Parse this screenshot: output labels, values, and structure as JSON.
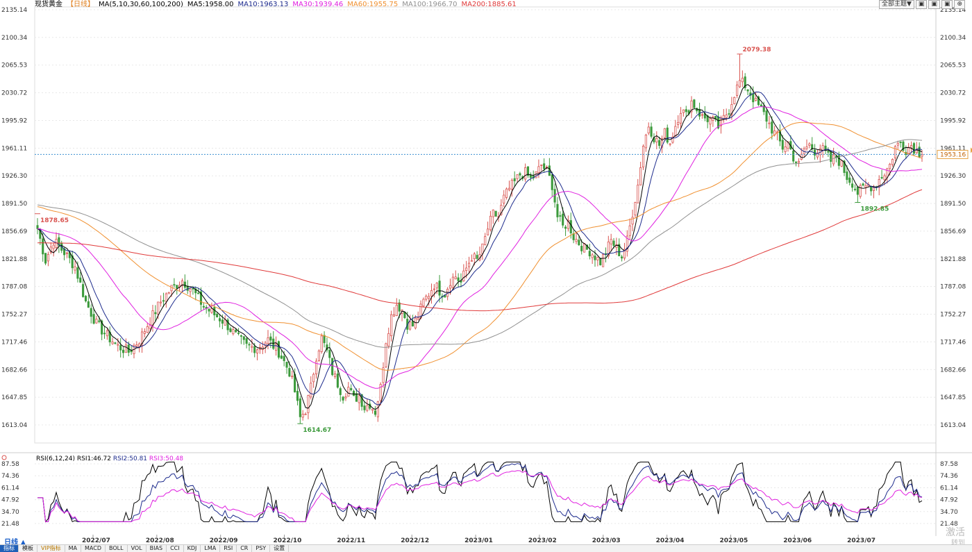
{
  "header": {
    "instrument": "现货黄金",
    "period": "【日线】",
    "ma_label": "MA(5,10,30,60,100,200)",
    "ma_values": [
      {
        "text": "MA5:1958.00",
        "color": "#000000"
      },
      {
        "text": "MA10:1963.13",
        "color": "#1c2a8c"
      },
      {
        "text": "MA30:1939.46",
        "color": "#e020e0"
      },
      {
        "text": "MA60:1955.75",
        "color": "#f09030"
      },
      {
        "text": "MA100:1966.70",
        "color": "#909090"
      },
      {
        "text": "MA200:1885.61",
        "color": "#e03a3a"
      }
    ]
  },
  "top_buttons": [
    "全部主题▼",
    "▣",
    "▣",
    "▣",
    "⊕"
  ],
  "price_axis_labels": [
    "2135.14",
    "2100.34",
    "2065.53",
    "2030.72",
    "1995.92",
    "1961.11",
    "1926.30",
    "1891.50",
    "1856.69",
    "1821.88",
    "1787.08",
    "1752.27",
    "1717.46",
    "1682.66",
    "1647.85",
    "1613.04"
  ],
  "current_price": "1953.16",
  "annotations": {
    "start": "1878.65",
    "high": "2079.38",
    "low": "1614.67",
    "recent_low": "1892.85"
  },
  "rsi_header": {
    "label": "RSI(6,12,24)",
    "values": [
      {
        "text": "RSI1:46.72",
        "color": "#000000"
      },
      {
        "text": "RSI2:50.81",
        "color": "#1c2a8c"
      },
      {
        "text": "RSI3:50.48",
        "color": "#e020e0"
      }
    ]
  },
  "rsi_axis_labels": [
    "87.58",
    "74.36",
    "61.14",
    "47.92",
    "34.70",
    "21.48"
  ],
  "month_labels": [
    "2022/07",
    "2022/08",
    "2022/09",
    "2022/10",
    "2022/11",
    "2022/12",
    "2023/01",
    "2023/02",
    "2023/03",
    "2023/04",
    "2023/05",
    "2023/06",
    "2023/07"
  ],
  "day_tab": "日线 ▲",
  "bottom_tabs": [
    "指标",
    "模板",
    "VIP指标",
    "MA",
    "MACD",
    "BOLL",
    "VOL",
    "BIAS",
    "CCI",
    "KDJ",
    "LMA",
    "RSI",
    "CR",
    "PSY",
    "设置"
  ],
  "watermark": [
    "激活",
    "转到"
  ],
  "colors": {
    "up": "#d9534f",
    "down": "#3c9a3c",
    "ma5": "#000000",
    "ma10": "#1c2a8c",
    "ma30": "#e020e0",
    "ma60": "#f09030",
    "ma100": "#909090",
    "ma200": "#e03a3a",
    "grid": "#e8e8e8",
    "price_line": "#3a8fd0"
  },
  "chart_data": {
    "type": "candlestick",
    "title": "现货黄金【日线】",
    "ylim": [
      1613.04,
      2135.14
    ],
    "y_ticks": [
      2135.14,
      2100.34,
      2065.53,
      2030.72,
      1995.92,
      1961.11,
      1926.3,
      1891.5,
      1856.69,
      1821.88,
      1787.08,
      1752.27,
      1717.46,
      1682.66,
      1647.85,
      1613.04
    ],
    "x_months": [
      "2022/07",
      "2022/08",
      "2022/09",
      "2022/10",
      "2022/11",
      "2022/12",
      "2023/01",
      "2023/02",
      "2023/03",
      "2023/04",
      "2023/05",
      "2023/06",
      "2023/07"
    ],
    "price_path": [
      [
        0,
        1860
      ],
      [
        3,
        1820
      ],
      [
        6,
        1845
      ],
      [
        10,
        1830
      ],
      [
        14,
        1812
      ],
      [
        18,
        1768
      ],
      [
        22,
        1740
      ],
      [
        26,
        1725
      ],
      [
        30,
        1712
      ],
      [
        34,
        1705
      ],
      [
        38,
        1720
      ],
      [
        42,
        1745
      ],
      [
        46,
        1768
      ],
      [
        50,
        1785
      ],
      [
        54,
        1795
      ],
      [
        58,
        1782
      ],
      [
        62,
        1762
      ],
      [
        66,
        1752
      ],
      [
        70,
        1742
      ],
      [
        74,
        1725
      ],
      [
        78,
        1712
      ],
      [
        82,
        1710
      ],
      [
        86,
        1720
      ],
      [
        90,
        1705
      ],
      [
        94,
        1680
      ],
      [
        96,
        1655
      ],
      [
        98,
        1622
      ],
      [
        100,
        1632
      ],
      [
        102,
        1660
      ],
      [
        104,
        1700
      ],
      [
        106,
        1722
      ],
      [
        108,
        1705
      ],
      [
        110,
        1680
      ],
      [
        112,
        1665
      ],
      [
        114,
        1650
      ],
      [
        116,
        1660
      ],
      [
        118,
        1645
      ],
      [
        120,
        1650
      ],
      [
        122,
        1635
      ],
      [
        124,
        1640
      ],
      [
        126,
        1630
      ],
      [
        128,
        1660
      ],
      [
        130,
        1720
      ],
      [
        132,
        1750
      ],
      [
        134,
        1765
      ],
      [
        136,
        1758
      ],
      [
        138,
        1740
      ],
      [
        140,
        1738
      ],
      [
        142,
        1750
      ],
      [
        144,
        1768
      ],
      [
        146,
        1778
      ],
      [
        148,
        1790
      ],
      [
        150,
        1782
      ],
      [
        152,
        1778
      ],
      [
        154,
        1795
      ],
      [
        156,
        1800
      ],
      [
        158,
        1792
      ],
      [
        160,
        1810
      ],
      [
        162,
        1825
      ],
      [
        164,
        1820
      ],
      [
        166,
        1835
      ],
      [
        168,
        1860
      ],
      [
        170,
        1878
      ],
      [
        172,
        1875
      ],
      [
        174,
        1898
      ],
      [
        176,
        1910
      ],
      [
        178,
        1918
      ],
      [
        180,
        1928
      ],
      [
        182,
        1930
      ],
      [
        184,
        1922
      ],
      [
        186,
        1928
      ],
      [
        188,
        1940
      ],
      [
        190,
        1932
      ],
      [
        192,
        1915
      ],
      [
        194,
        1875
      ],
      [
        196,
        1862
      ],
      [
        198,
        1868
      ],
      [
        200,
        1850
      ],
      [
        202,
        1842
      ],
      [
        204,
        1835
      ],
      [
        206,
        1832
      ],
      [
        208,
        1825
      ],
      [
        210,
        1818
      ],
      [
        212,
        1830
      ],
      [
        214,
        1845
      ],
      [
        216,
        1835
      ],
      [
        218,
        1825
      ],
      [
        220,
        1845
      ],
      [
        222,
        1880
      ],
      [
        224,
        1915
      ],
      [
        226,
        1965
      ],
      [
        228,
        1990
      ],
      [
        230,
        1975
      ],
      [
        232,
        1965
      ],
      [
        234,
        1980
      ],
      [
        236,
        1968
      ],
      [
        238,
        1990
      ],
      [
        240,
        2010
      ],
      [
        242,
        2002
      ],
      [
        244,
        2020
      ],
      [
        246,
        2010
      ],
      [
        248,
        2000
      ],
      [
        250,
        1998
      ],
      [
        252,
        1995
      ],
      [
        254,
        1988
      ],
      [
        256,
        1998
      ],
      [
        258,
        2010
      ],
      [
        260,
        2030
      ],
      [
        262,
        2045
      ],
      [
        264,
        2040
      ],
      [
        266,
        2030
      ],
      [
        268,
        2018
      ],
      [
        270,
        2010
      ],
      [
        272,
        1998
      ],
      [
        274,
        1985
      ],
      [
        276,
        1975
      ],
      [
        278,
        1962
      ],
      [
        280,
        1968
      ],
      [
        282,
        1950
      ],
      [
        284,
        1940
      ],
      [
        286,
        1960
      ],
      [
        288,
        1965
      ],
      [
        290,
        1958
      ],
      [
        292,
        1962
      ],
      [
        294,
        1955
      ],
      [
        296,
        1945
      ],
      [
        298,
        1950
      ],
      [
        300,
        1940
      ],
      [
        302,
        1925
      ],
      [
        304,
        1918
      ],
      [
        306,
        1905
      ],
      [
        308,
        1910
      ],
      [
        310,
        1915
      ],
      [
        312,
        1912
      ],
      [
        314,
        1922
      ],
      [
        316,
        1930
      ],
      [
        318,
        1940
      ],
      [
        320,
        1962
      ],
      [
        322,
        1968
      ],
      [
        324,
        1960
      ],
      [
        326,
        1965
      ],
      [
        328,
        1958
      ],
      [
        330,
        1953
      ]
    ],
    "highs": [
      {
        "label": "2079.38",
        "value": 2079.38
      }
    ],
    "lows": [
      {
        "label": "1614.67",
        "value": 1614.67
      },
      {
        "label": "1892.85",
        "value": 1892.85
      }
    ],
    "first_close_marker": {
      "label": "1878.65",
      "value": 1878.65
    },
    "last_price": 1953.16,
    "ma_series": [
      {
        "name": "MA5",
        "window": 5
      },
      {
        "name": "MA10",
        "window": 10
      },
      {
        "name": "MA30",
        "window": 30
      },
      {
        "name": "MA60",
        "window": 60
      },
      {
        "name": "MA100",
        "window": 100
      },
      {
        "name": "MA200",
        "window": 200
      }
    ],
    "ma_start": {
      "MA60": 1888,
      "MA100": 1890,
      "MA200": 1842
    },
    "rsi": {
      "ylim": [
        21.48,
        87.58
      ],
      "series": [
        {
          "name": "RSI1",
          "last": 46.72
        },
        {
          "name": "RSI2",
          "last": 50.81
        },
        {
          "name": "RSI3",
          "last": 50.48
        }
      ]
    }
  }
}
